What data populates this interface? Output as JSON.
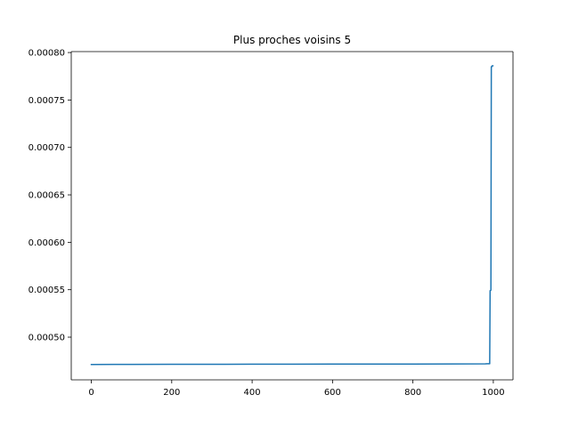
{
  "chart_data": {
    "type": "line",
    "title": "Plus proches voisins 5",
    "xlabel": "",
    "ylabel": "",
    "xlim": [
      -49.95,
      1048.95
    ],
    "ylim": [
      0.000455,
      0.000801
    ],
    "grid": false,
    "x_ticks": [
      0,
      200,
      400,
      600,
      800,
      1000
    ],
    "x_tick_labels": [
      "0",
      "200",
      "400",
      "600",
      "800",
      "1000"
    ],
    "y_ticks": [
      0.0005,
      0.00055,
      0.0006,
      0.00065,
      0.0007,
      0.00075,
      0.0008
    ],
    "y_tick_labels": [
      "0.00050",
      "0.00055",
      "0.00060",
      "0.00065",
      "0.00070",
      "0.00075",
      "0.00080"
    ],
    "series": [
      {
        "color": "#1f77b4",
        "x": [
          0,
          100,
          200,
          300,
          400,
          500,
          600,
          700,
          800,
          900,
          980,
          985,
          990,
          991,
          992,
          993,
          994,
          995,
          996,
          997,
          998,
          999
        ],
        "y": [
          0.0004712,
          0.0004713,
          0.0004714,
          0.0004714,
          0.0004715,
          0.0004715,
          0.0004716,
          0.0004716,
          0.0004717,
          0.0004718,
          0.0004719,
          0.000472,
          0.0004721,
          0.000472,
          0.000549,
          0.000549,
          0.0005496,
          0.000785,
          0.000785,
          0.000786,
          0.000786,
          0.000786
        ]
      }
    ]
  }
}
